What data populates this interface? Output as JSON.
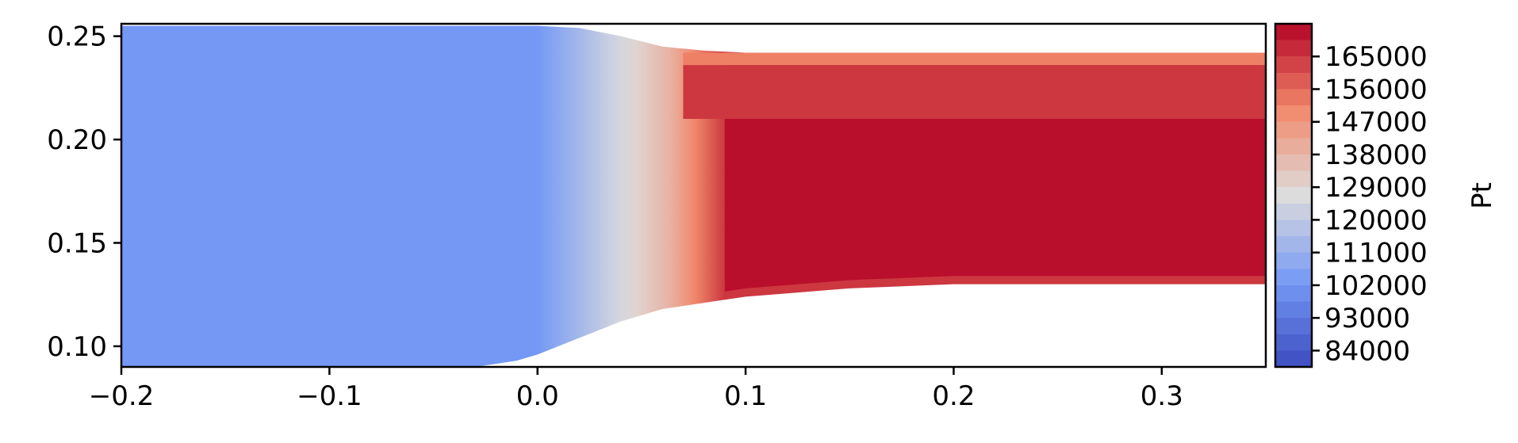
{
  "chart_data": {
    "type": "contourf",
    "title": "",
    "xlabel": "",
    "ylabel": "",
    "xlim": [
      -0.2,
      0.35
    ],
    "ylim": [
      0.09,
      0.256
    ],
    "x_ticks": [
      {
        "value": -0.2,
        "label": "−0.2"
      },
      {
        "value": -0.1,
        "label": "−0.1"
      },
      {
        "value": 0.0,
        "label": "0.0"
      },
      {
        "value": 0.1,
        "label": "0.1"
      },
      {
        "value": 0.2,
        "label": "0.2"
      },
      {
        "value": 0.3,
        "label": "0.3"
      }
    ],
    "y_ticks": [
      {
        "value": 0.1,
        "label": "0.10"
      },
      {
        "value": 0.15,
        "label": "0.15"
      },
      {
        "value": 0.2,
        "label": "0.20"
      },
      {
        "value": 0.25,
        "label": "0.25"
      }
    ],
    "colorbar": {
      "label": "Pt",
      "colormap": "coolwarm",
      "range": [
        79500,
        174000
      ],
      "ticks": [
        {
          "value": 84000,
          "label": "84000"
        },
        {
          "value": 93000,
          "label": "93000"
        },
        {
          "value": 102000,
          "label": "102000"
        },
        {
          "value": 111000,
          "label": "111000"
        },
        {
          "value": 120000,
          "label": "120000"
        },
        {
          "value": 129000,
          "label": "129000"
        },
        {
          "value": 138000,
          "label": "138000"
        },
        {
          "value": 147000,
          "label": "147000"
        },
        {
          "value": 156000,
          "label": "156000"
        },
        {
          "value": 165000,
          "label": "165000"
        }
      ]
    },
    "domain": {
      "upper_wall": [
        [
          -0.2,
          0.255
        ],
        [
          0.0,
          0.255
        ],
        [
          0.02,
          0.254
        ],
        [
          0.04,
          0.25
        ],
        [
          0.06,
          0.245
        ],
        [
          0.08,
          0.243
        ],
        [
          0.1,
          0.242
        ],
        [
          0.2,
          0.242
        ],
        [
          0.35,
          0.242
        ]
      ],
      "lower_wall": [
        [
          -0.2,
          0.09
        ],
        [
          -0.03,
          0.09
        ],
        [
          -0.01,
          0.093
        ],
        [
          0.0,
          0.096
        ],
        [
          0.02,
          0.104
        ],
        [
          0.04,
          0.112
        ],
        [
          0.06,
          0.118
        ],
        [
          0.08,
          0.121
        ],
        [
          0.1,
          0.124
        ],
        [
          0.15,
          0.128
        ],
        [
          0.2,
          0.13
        ],
        [
          0.3,
          0.13
        ],
        [
          0.35,
          0.13
        ]
      ]
    },
    "regions": [
      {
        "name": "upstream-region",
        "pt": 102500,
        "x_from": -0.2,
        "x_to": 0.0
      },
      {
        "name": "transition-region",
        "pt_from": 102500,
        "pt_to": 138000,
        "x_from": 0.0,
        "x_to": 0.063
      },
      {
        "name": "shock-region",
        "pt_from": 138000,
        "pt_to": 165000,
        "x_from": 0.063,
        "x_to": 0.09
      },
      {
        "name": "downstream-core",
        "pt": 172000,
        "x_from": 0.09,
        "x_to": 0.35,
        "y_from": 0.125,
        "y_to": 0.21
      },
      {
        "name": "upper-layer",
        "pt": 165000,
        "x_from": 0.07,
        "x_to": 0.35,
        "y_from": 0.21,
        "y_to": 0.236
      },
      {
        "name": "upper-wall-layer",
        "pt": 152000,
        "x_from": 0.07,
        "x_to": 0.35,
        "y_from": 0.236,
        "y_to": 0.242
      }
    ]
  }
}
